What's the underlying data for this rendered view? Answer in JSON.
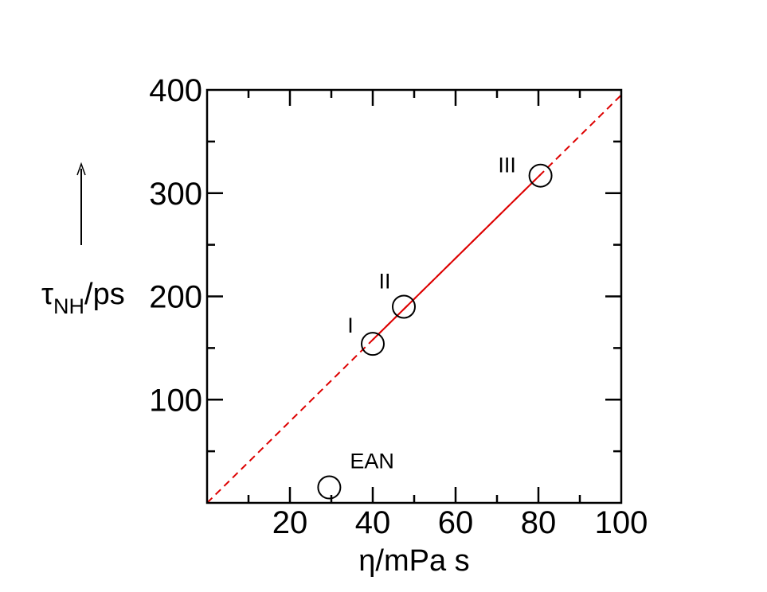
{
  "chart_data": {
    "type": "scatter",
    "xlabel": "η/mPa s",
    "ylabel_main": "τ",
    "ylabel_sub": "NH",
    "ylabel_unit": "/ps",
    "xlim": [
      0,
      100
    ],
    "ylim": [
      0,
      400
    ],
    "x_ticks": [
      20,
      40,
      60,
      80,
      100
    ],
    "y_ticks": [
      100,
      200,
      300,
      400
    ],
    "x_minor_step": 10,
    "y_minor_step": 50,
    "grid": false,
    "points": [
      {
        "label": "EAN",
        "x": 29.5,
        "y": 15
      },
      {
        "label": "I",
        "x": 40,
        "y": 154
      },
      {
        "label": "II",
        "x": 47.5,
        "y": 190
      },
      {
        "label": "III",
        "x": 80.5,
        "y": 317
      }
    ],
    "fit_line": {
      "slope": 3.95,
      "intercept": 0,
      "color": "#dd0000",
      "solid_from_x": 40,
      "solid_to_x": 80.5
    }
  }
}
